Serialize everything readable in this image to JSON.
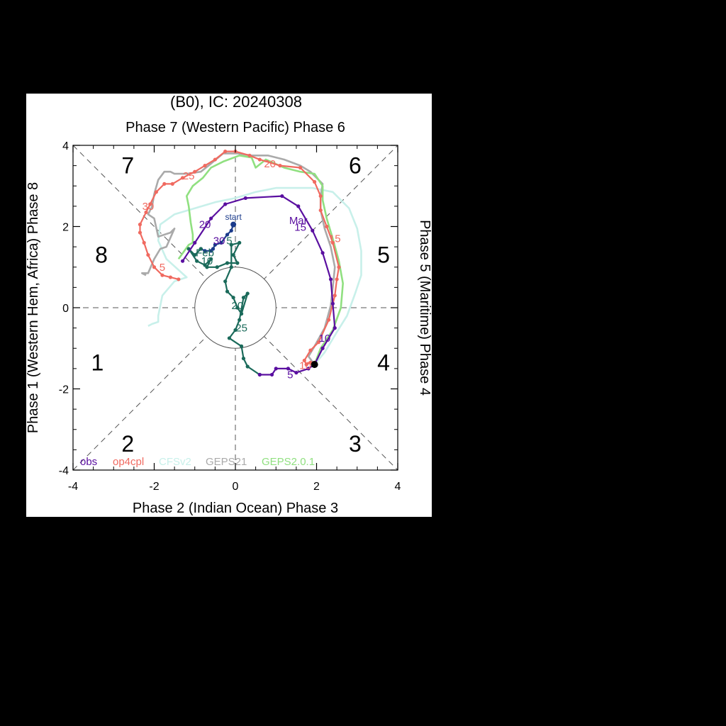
{
  "chart_data": {
    "type": "line",
    "title": "(B0), IC: 20240308",
    "xlim": [
      -4,
      4
    ],
    "ylim": [
      -4,
      4
    ],
    "xticks": [
      -4,
      -2,
      0,
      2,
      4
    ],
    "yticks": [
      -4,
      -2,
      0,
      2,
      4
    ],
    "xtick_labels": [
      "-4",
      "-2",
      "0",
      "2",
      "4"
    ],
    "ytick_labels": [
      "-4",
      "-2",
      "0",
      "2",
      "4"
    ],
    "axis_labels": {
      "top": "Phase 7 (Western Pacific) Phase 6",
      "bottom": "Phase 2 (Indian Ocean) Phase 3",
      "left": "Phase 1 (Western Hem, Africa) Phase 8",
      "right": "Phase 5 (Maritime) Phase 4"
    },
    "phase_numbers": [
      {
        "label": "7",
        "x": -2.65,
        "y": 3.5
      },
      {
        "label": "6",
        "x": 2.95,
        "y": 3.5
      },
      {
        "label": "8",
        "x": -3.3,
        "y": 1.3
      },
      {
        "label": "5",
        "x": 3.65,
        "y": 1.3
      },
      {
        "label": "1",
        "x": -3.4,
        "y": -1.35
      },
      {
        "label": "4",
        "x": 3.65,
        "y": -1.35
      },
      {
        "label": "2",
        "x": -2.65,
        "y": -3.35
      },
      {
        "label": "3",
        "x": 2.95,
        "y": -3.35
      }
    ],
    "unit_circle_radius": 1,
    "legend": [
      "obs",
      "op4cpl",
      "CFSv2",
      "GEPS21",
      "GEPS2.0.1"
    ],
    "legend_position": "bottom-left",
    "series": [
      {
        "name": "obs",
        "color": "#1a3a8a",
        "markers": true,
        "points": [
          [
            -0.05,
            2.05
          ],
          [
            -0.1,
            1.9
          ],
          [
            -0.2,
            1.8
          ],
          [
            -0.35,
            1.6
          ],
          [
            -0.5,
            1.55
          ],
          [
            -0.55,
            1.45
          ],
          [
            -0.6,
            1.4
          ],
          [
            -0.75,
            1.4
          ],
          [
            -0.85,
            1.45
          ]
        ],
        "labels": [
          {
            "text": "start",
            "x": -0.05,
            "y": 2.25
          }
        ]
      },
      {
        "name": "obs",
        "color": "#1a6a5a",
        "markers": true,
        "points": [
          [
            -0.85,
            1.45
          ],
          [
            -1.0,
            1.3
          ],
          [
            -1.15,
            1.45
          ],
          [
            -0.95,
            1.15
          ],
          [
            -0.75,
            1.05
          ],
          [
            -0.6,
            1.2
          ],
          [
            -0.7,
            1.0
          ],
          [
            -0.45,
            1.0
          ],
          [
            -0.2,
            1.1
          ],
          [
            0.05,
            1.1
          ],
          [
            -0.05,
            1.3
          ],
          [
            0.1,
            1.6
          ],
          [
            -0.1,
            1.55
          ],
          [
            -0.1,
            1.0
          ],
          [
            -0.25,
            0.65
          ],
          [
            -0.2,
            0.4
          ],
          [
            -0.05,
            0.25
          ],
          [
            0.05,
            0.0
          ],
          [
            0.15,
            -0.15
          ],
          [
            0.3,
            0.35
          ],
          [
            0.2,
            0.25
          ],
          [
            0.1,
            -0.3
          ],
          [
            0.0,
            -0.55
          ],
          [
            -0.15,
            -0.75
          ],
          [
            0.15,
            -0.95
          ],
          [
            0.2,
            -1.25
          ],
          [
            0.3,
            -1.45
          ],
          [
            0.6,
            -1.65
          ]
        ],
        "labels": [
          {
            "text": "Feb",
            "x": -0.75,
            "y": 1.35
          },
          {
            "text": "10",
            "x": -0.7,
            "y": 1.15
          },
          {
            "text": "5",
            "x": -0.15,
            "y": 1.65
          },
          {
            "text": "20",
            "x": 0.05,
            "y": 0.05
          },
          {
            "text": "25",
            "x": 0.15,
            "y": -0.5
          }
        ]
      },
      {
        "name": "obs",
        "color": "#5a0fa0",
        "markers": true,
        "points": [
          [
            0.6,
            -1.65
          ],
          [
            0.9,
            -1.65
          ],
          [
            1.0,
            -1.5
          ],
          [
            1.3,
            -1.5
          ],
          [
            1.5,
            -1.6
          ],
          [
            1.8,
            -1.5
          ],
          [
            1.95,
            -1.4
          ],
          [
            2.15,
            -1.0
          ],
          [
            2.45,
            -0.5
          ],
          [
            2.4,
            0.1
          ],
          [
            2.35,
            0.7
          ],
          [
            2.15,
            1.35
          ],
          [
            1.9,
            1.9
          ],
          [
            1.55,
            2.5
          ],
          [
            1.15,
            2.75
          ],
          [
            0.25,
            2.7
          ],
          [
            -0.25,
            2.55
          ],
          [
            -0.6,
            2.2
          ],
          [
            -1.0,
            1.6
          ],
          [
            -1.3,
            1.15
          ]
        ],
        "labels": [
          {
            "text": "20",
            "x": -0.75,
            "y": 2.05
          },
          {
            "text": "30",
            "x": -0.4,
            "y": 1.65
          },
          {
            "text": "5",
            "x": 1.35,
            "y": -1.65
          },
          {
            "text": "10",
            "x": 2.2,
            "y": -0.75
          },
          {
            "text": "15",
            "x": 1.6,
            "y": 1.98
          },
          {
            "text": "Mar",
            "x": 1.55,
            "y": 2.15
          }
        ]
      },
      {
        "name": "op4cpl",
        "color": "#f06a60",
        "markers": true,
        "points": [
          [
            1.95,
            -1.35
          ],
          [
            1.85,
            -1.35
          ],
          [
            1.75,
            -1.4
          ],
          [
            1.7,
            -1.3
          ],
          [
            1.85,
            -1.05
          ],
          [
            2.05,
            -0.85
          ],
          [
            2.3,
            -0.3
          ],
          [
            2.45,
            0.3
          ],
          [
            2.5,
            0.7
          ],
          [
            2.55,
            1.0
          ],
          [
            2.4,
            1.6
          ],
          [
            2.25,
            2.0
          ],
          [
            2.1,
            2.4
          ],
          [
            2.1,
            2.75
          ],
          [
            1.95,
            3.1
          ],
          [
            1.6,
            3.45
          ],
          [
            1.1,
            3.5
          ],
          [
            0.6,
            3.65
          ],
          [
            0.35,
            3.75
          ],
          [
            0.0,
            3.85
          ],
          [
            -0.25,
            3.85
          ],
          [
            -0.5,
            3.65
          ],
          [
            -0.75,
            3.5
          ],
          [
            -1.0,
            3.35
          ],
          [
            -1.3,
            3.2
          ],
          [
            -1.55,
            3.05
          ],
          [
            -1.75,
            3.05
          ],
          [
            -1.95,
            2.85
          ],
          [
            -2.1,
            2.55
          ],
          [
            -2.2,
            2.35
          ],
          [
            -2.35,
            2.05
          ],
          [
            -2.35,
            1.85
          ],
          [
            -2.25,
            1.6
          ],
          [
            -2.15,
            1.3
          ],
          [
            -2.0,
            1.0
          ],
          [
            -1.8,
            0.8
          ],
          [
            -1.6,
            0.75
          ],
          [
            -1.4,
            0.7
          ]
        ],
        "labels": [
          {
            "text": "15",
            "x": 2.45,
            "y": 1.7
          },
          {
            "text": "20",
            "x": 0.85,
            "y": 3.55
          },
          {
            "text": "25",
            "x": -1.15,
            "y": 3.25
          },
          {
            "text": "30",
            "x": -2.15,
            "y": 2.5
          },
          {
            "text": "5",
            "x": -1.8,
            "y": 1.0
          },
          {
            "text": "10",
            "x": 1.72,
            "y": -1.42
          }
        ]
      },
      {
        "name": "CFSv2",
        "color": "#c8f0ea",
        "markers": false,
        "points": [
          [
            1.95,
            -1.4
          ],
          [
            2.2,
            -1.1
          ],
          [
            2.5,
            -0.6
          ],
          [
            2.75,
            -0.2
          ],
          [
            2.95,
            0.35
          ],
          [
            3.1,
            0.8
          ],
          [
            3.1,
            1.4
          ],
          [
            3.0,
            1.95
          ],
          [
            2.8,
            2.45
          ],
          [
            2.4,
            2.85
          ],
          [
            1.9,
            2.95
          ],
          [
            1.5,
            2.95
          ],
          [
            1.0,
            2.95
          ],
          [
            0.5,
            2.85
          ],
          [
            0.0,
            2.7
          ],
          [
            -0.5,
            2.6
          ],
          [
            -1.0,
            2.45
          ],
          [
            -1.5,
            2.3
          ],
          [
            -1.85,
            2.05
          ],
          [
            -1.9,
            1.65
          ],
          [
            -1.7,
            1.2
          ],
          [
            -1.2,
            0.75
          ],
          [
            -1.5,
            0.65
          ],
          [
            -1.8,
            0.3
          ],
          [
            -1.9,
            -0.2
          ],
          [
            -1.9,
            -0.35
          ],
          [
            -2.05,
            -0.4
          ],
          [
            -2.15,
            -0.45
          ]
        ],
        "labels": []
      },
      {
        "name": "GEPS21",
        "color": "#aaaaaa",
        "markers": false,
        "points": [
          [
            1.95,
            -1.4
          ],
          [
            1.8,
            -1.2
          ],
          [
            1.95,
            -0.95
          ],
          [
            2.2,
            -0.5
          ],
          [
            2.35,
            0.05
          ],
          [
            2.4,
            0.5
          ],
          [
            2.45,
            1.0
          ],
          [
            2.35,
            1.5
          ],
          [
            2.2,
            1.95
          ],
          [
            2.1,
            2.4
          ],
          [
            2.1,
            2.75
          ],
          [
            2.15,
            3.05
          ],
          [
            1.85,
            3.35
          ],
          [
            1.6,
            3.5
          ],
          [
            1.2,
            3.65
          ],
          [
            0.8,
            3.75
          ],
          [
            0.4,
            3.75
          ],
          [
            0.05,
            3.8
          ],
          [
            -0.3,
            3.8
          ],
          [
            -0.6,
            3.55
          ],
          [
            -0.85,
            3.35
          ],
          [
            -1.2,
            3.3
          ],
          [
            -1.4,
            3.3
          ],
          [
            -1.5,
            3.3
          ],
          [
            -1.6,
            3.35
          ],
          [
            -1.75,
            3.35
          ],
          [
            -1.9,
            3.15
          ],
          [
            -2.0,
            2.8
          ],
          [
            -2.05,
            2.5
          ],
          [
            -2.15,
            2.3
          ],
          [
            -2.0,
            2.2
          ],
          [
            -1.9,
            1.75
          ],
          [
            -1.6,
            1.85
          ],
          [
            -1.5,
            1.95
          ],
          [
            -1.7,
            1.5
          ],
          [
            -1.85,
            1.45
          ],
          [
            -2.0,
            1.2
          ],
          [
            -2.15,
            0.85
          ],
          [
            -2.3,
            0.85
          ],
          [
            -2.2,
            0.8
          ]
        ],
        "labels": []
      },
      {
        "name": "GEPS2.0.1",
        "color": "#90e080",
        "markers": false,
        "points": [
          [
            1.95,
            -1.4
          ],
          [
            2.1,
            -1.0
          ],
          [
            2.4,
            -0.55
          ],
          [
            2.6,
            0.0
          ],
          [
            2.65,
            0.6
          ],
          [
            2.55,
            1.15
          ],
          [
            2.4,
            1.7
          ],
          [
            2.25,
            2.2
          ],
          [
            2.15,
            2.65
          ],
          [
            2.15,
            3.0
          ],
          [
            1.95,
            3.3
          ],
          [
            1.6,
            3.35
          ],
          [
            1.2,
            3.45
          ],
          [
            0.75,
            3.65
          ],
          [
            0.5,
            3.45
          ],
          [
            0.4,
            3.7
          ],
          [
            0.1,
            3.75
          ],
          [
            -0.3,
            3.6
          ],
          [
            -0.6,
            3.45
          ],
          [
            -0.8,
            3.2
          ],
          [
            -1.05,
            3.0
          ],
          [
            -1.2,
            2.75
          ],
          [
            -1.15,
            2.5
          ],
          [
            -1.1,
            2.1
          ],
          [
            -1.05,
            1.8
          ],
          [
            -1.05,
            1.6
          ],
          [
            -1.15,
            1.55
          ],
          [
            -1.4,
            1.2
          ]
        ],
        "labels": []
      }
    ],
    "end_marker": {
      "x": 1.95,
      "y": -1.4
    }
  }
}
